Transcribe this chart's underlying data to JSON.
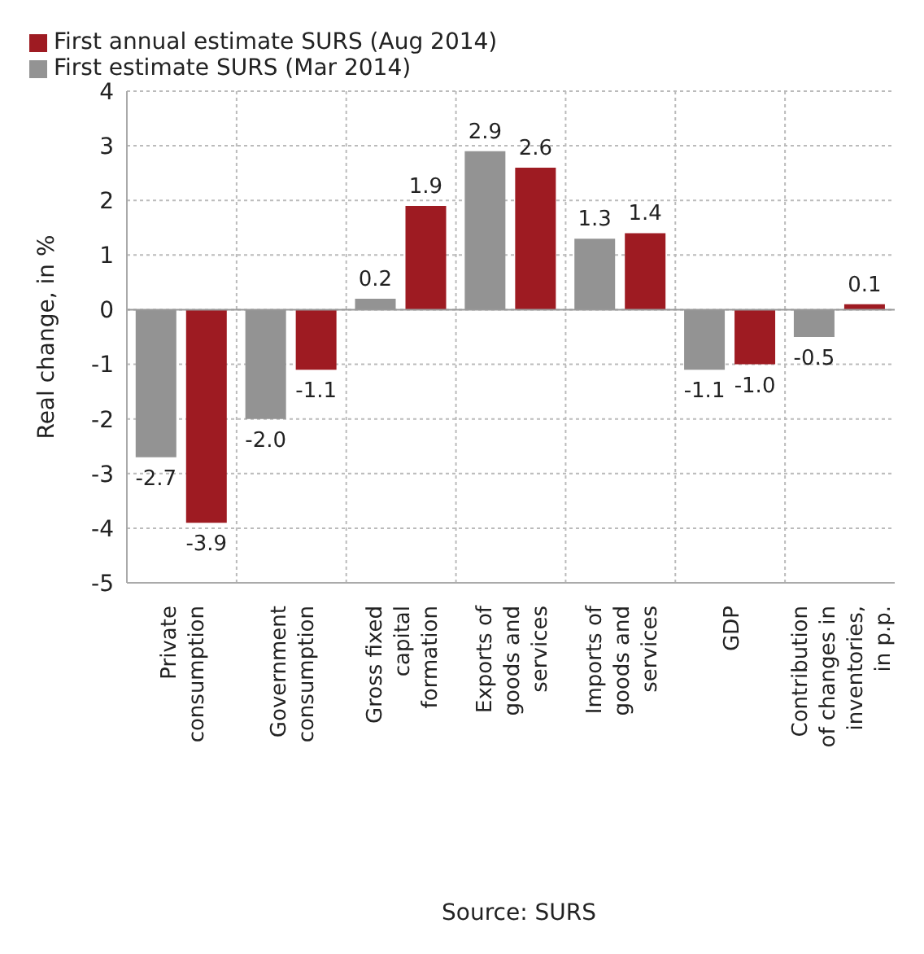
{
  "chart_data": {
    "type": "bar",
    "ylabel": "Real change, in %",
    "categories": [
      "Private consumption",
      "Government consumption",
      "Gross fixed capital formation",
      "Exports of goods and services",
      "Imports of goods and services",
      "GDP",
      "Contribution of changes in inventories, in p.p."
    ],
    "series": [
      {
        "name": "First estimate SURS (Mar 2014)",
        "color": "#939393",
        "values": [
          -2.7,
          -2.0,
          0.2,
          2.9,
          1.3,
          -1.1,
          -0.5
        ],
        "value_labels": [
          "-2.7",
          "-2.0",
          "0.2",
          "2.9",
          "1.3",
          "-1.1",
          "-0.5"
        ]
      },
      {
        "name": "First annual estimate SURS (Aug 2014)",
        "color": "#9e1b22",
        "values": [
          -3.9,
          -1.1,
          1.9,
          2.6,
          1.4,
          -1.0,
          0.1
        ],
        "value_labels": [
          "-3.9",
          "-1.1",
          "1.9",
          "2.6",
          "1.4",
          "-1.0",
          "0.1"
        ]
      }
    ],
    "ylim": [
      -5,
      4
    ],
    "yticks": [
      -5,
      -4,
      -3,
      -2,
      -1,
      0,
      1,
      2,
      3,
      4
    ],
    "grid": true,
    "legend": "top left",
    "annotations": [
      "Source: SURS"
    ]
  }
}
